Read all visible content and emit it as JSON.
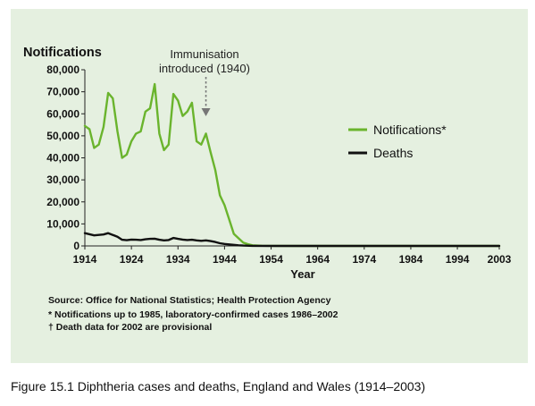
{
  "chart_data": {
    "type": "line",
    "ylabel": "Notifications",
    "xlabel": "Year",
    "xlim": [
      1914,
      2003
    ],
    "ylim": [
      0,
      80000
    ],
    "x_ticks": [
      1914,
      1924,
      1934,
      1944,
      1954,
      1964,
      1974,
      1984,
      1994,
      2003
    ],
    "y_ticks": [
      0,
      10000,
      20000,
      30000,
      40000,
      50000,
      60000,
      70000,
      80000
    ],
    "y_tick_labels": [
      "0",
      "10,000",
      "20,000",
      "30,000",
      "40,000",
      "50,000",
      "60,000",
      "70,000",
      "80,000"
    ],
    "grid": false,
    "legend_position": "right",
    "series": [
      {
        "name": "Notifications*",
        "color": "#6ab42d",
        "points": [
          [
            1914,
            54500
          ],
          [
            1915,
            53000
          ],
          [
            1916,
            44500
          ],
          [
            1917,
            46000
          ],
          [
            1918,
            54000
          ],
          [
            1919,
            69500
          ],
          [
            1920,
            67000
          ],
          [
            1921,
            52000
          ],
          [
            1922,
            40000
          ],
          [
            1923,
            41500
          ],
          [
            1924,
            47500
          ],
          [
            1925,
            51000
          ],
          [
            1926,
            52000
          ],
          [
            1927,
            61000
          ],
          [
            1928,
            62500
          ],
          [
            1929,
            73500
          ],
          [
            1930,
            51000
          ],
          [
            1931,
            43500
          ],
          [
            1932,
            46000
          ],
          [
            1933,
            69000
          ],
          [
            1934,
            66000
          ],
          [
            1935,
            59000
          ],
          [
            1936,
            61000
          ],
          [
            1937,
            65000
          ],
          [
            1938,
            47500
          ],
          [
            1939,
            46000
          ],
          [
            1940,
            51000
          ],
          [
            1941,
            42500
          ],
          [
            1942,
            34500
          ],
          [
            1943,
            23000
          ],
          [
            1944,
            18500
          ],
          [
            1945,
            12000
          ],
          [
            1946,
            5500
          ],
          [
            1947,
            3500
          ],
          [
            1948,
            1500
          ],
          [
            1949,
            800
          ],
          [
            1950,
            300
          ],
          [
            1952,
            100
          ],
          [
            1955,
            50
          ],
          [
            1960,
            20
          ],
          [
            1970,
            10
          ],
          [
            1985,
            5
          ],
          [
            2003,
            5
          ]
        ]
      },
      {
        "name": "Deaths",
        "color": "#111111",
        "points": [
          [
            1914,
            5800
          ],
          [
            1915,
            5300
          ],
          [
            1916,
            4800
          ],
          [
            1917,
            5000
          ],
          [
            1918,
            5200
          ],
          [
            1919,
            5800
          ],
          [
            1920,
            5000
          ],
          [
            1921,
            4200
          ],
          [
            1922,
            2800
          ],
          [
            1923,
            2600
          ],
          [
            1924,
            2900
          ],
          [
            1925,
            2800
          ],
          [
            1926,
            2700
          ],
          [
            1927,
            3000
          ],
          [
            1928,
            3200
          ],
          [
            1929,
            3300
          ],
          [
            1930,
            2800
          ],
          [
            1931,
            2500
          ],
          [
            1932,
            2700
          ],
          [
            1933,
            3600
          ],
          [
            1934,
            3200
          ],
          [
            1935,
            2900
          ],
          [
            1936,
            2700
          ],
          [
            1937,
            2800
          ],
          [
            1938,
            2500
          ],
          [
            1939,
            2300
          ],
          [
            1940,
            2500
          ],
          [
            1941,
            2200
          ],
          [
            1942,
            1800
          ],
          [
            1943,
            1200
          ],
          [
            1944,
            900
          ],
          [
            1945,
            700
          ],
          [
            1946,
            500
          ],
          [
            1947,
            300
          ],
          [
            1948,
            150
          ],
          [
            1950,
            50
          ],
          [
            1955,
            10
          ],
          [
            2003,
            0
          ]
        ]
      }
    ],
    "annotation": {
      "text_line1": "Immunisation",
      "text_line2": "introduced (1940)",
      "x": 1940
    }
  },
  "notes": {
    "source": "Source: Office for National Statistics; Health Protection Agency",
    "footnote1": "* Notifications up to 1985, laboratory-confirmed cases 1986–2002",
    "footnote2": "† Death data for 2002 are provisional"
  },
  "caption": "Figure 15.1  Diphtheria cases and deaths, England and Wales (1914–2003)"
}
